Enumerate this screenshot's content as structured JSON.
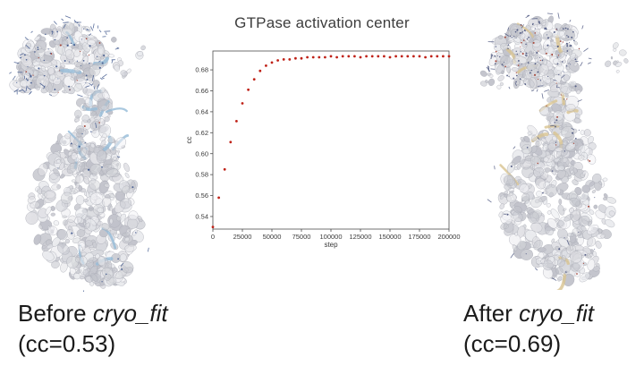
{
  "chart_data": {
    "type": "scatter",
    "title": "GTPase activation center",
    "xlabel": "step",
    "ylabel": "cc",
    "xlim": [
      0,
      200000
    ],
    "ylim": [
      0.528,
      0.698
    ],
    "x_ticks": [
      0,
      25000,
      50000,
      75000,
      100000,
      125000,
      150000,
      175000,
      200000
    ],
    "y_ticks": [
      "0.54",
      "0.56",
      "0.58",
      "0.60",
      "0.62",
      "0.64",
      "0.66",
      "0.68"
    ],
    "grid": false,
    "legend": null,
    "marker_color": "#bf2117",
    "marker_size": 1.4,
    "axis_color": "#4d4d4d",
    "tick_label_color": "#3a3a3a",
    "x": [
      0,
      5000,
      10000,
      15000,
      20000,
      25000,
      30000,
      35000,
      40000,
      45000,
      50000,
      55000,
      60000,
      65000,
      70000,
      75000,
      80000,
      85000,
      90000,
      95000,
      100000,
      105000,
      110000,
      115000,
      120000,
      125000,
      130000,
      135000,
      140000,
      145000,
      150000,
      155000,
      160000,
      165000,
      170000,
      175000,
      180000,
      185000,
      190000,
      195000,
      200000
    ],
    "y": [
      0.53,
      0.558,
      0.585,
      0.611,
      0.631,
      0.648,
      0.661,
      0.671,
      0.679,
      0.684,
      0.687,
      0.689,
      0.69,
      0.69,
      0.691,
      0.691,
      0.692,
      0.692,
      0.692,
      0.692,
      0.693,
      0.692,
      0.693,
      0.693,
      0.693,
      0.692,
      0.693,
      0.693,
      0.693,
      0.693,
      0.692,
      0.693,
      0.693,
      0.693,
      0.693,
      0.693,
      0.692,
      0.693,
      0.693,
      0.693,
      0.693
    ]
  },
  "captions": {
    "before": {
      "text_regular": "Before ",
      "text_italic": "cryo_fit",
      "line2": "(cc=0.53)"
    },
    "after": {
      "text_regular": "After ",
      "text_italic": "cryo_fit",
      "line2": "(cc=0.69)"
    }
  },
  "molecules": {
    "before": {
      "map_color": "#e1e2e6",
      "ribbon_color": "#96bcd8",
      "stick_color": "#3f578c",
      "accent_color": "#a23b2c"
    },
    "after": {
      "map_color": "#e1e2e6",
      "ribbon_color": "#d9c493",
      "stick_color": "#4a547e",
      "accent_color": "#a23b2c"
    }
  }
}
